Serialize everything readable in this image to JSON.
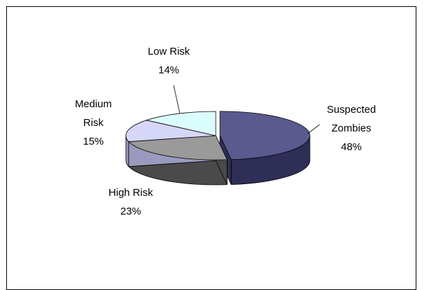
{
  "chart_data": {
    "type": "pie",
    "style": "3d-exploded",
    "slices": [
      {
        "label_lines": [
          "Suspected",
          "Zombies"
        ],
        "value": 48,
        "pct_label": "48%",
        "color": "#5a5a8e",
        "side_color": "#2e2e56"
      },
      {
        "label_lines": [
          "High Risk"
        ],
        "value": 23,
        "pct_label": "23%",
        "color": "#9a9a9a",
        "side_color": "#4a4a4a"
      },
      {
        "label_lines": [
          "Medium",
          "Risk"
        ],
        "value": 15,
        "pct_label": "15%",
        "color": "#d6d6f8",
        "side_color": "#9a9ac0"
      },
      {
        "label_lines": [
          "Low Risk"
        ],
        "value": 14,
        "pct_label": "14%",
        "color": "#dcfdfd",
        "side_color": "#9acccc"
      }
    ],
    "legend": "none"
  }
}
